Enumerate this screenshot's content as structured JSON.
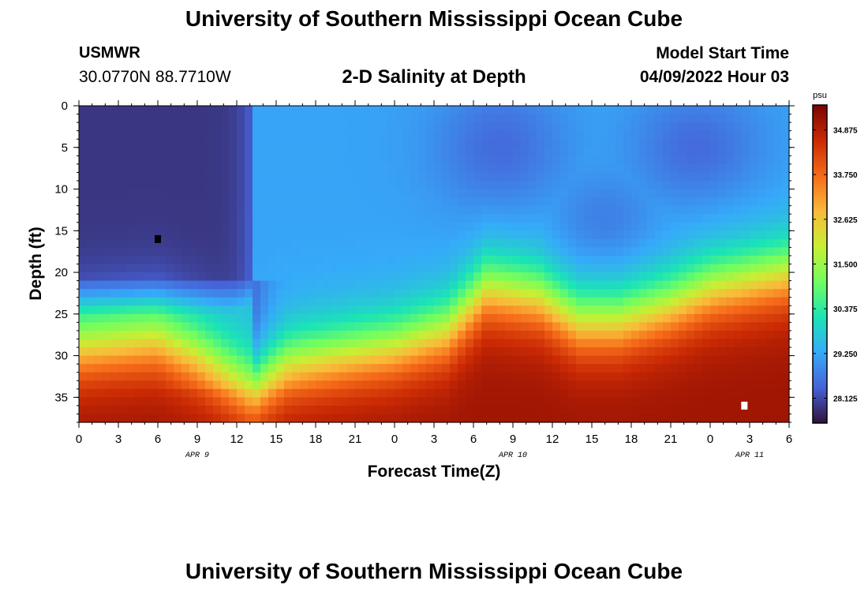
{
  "header": {
    "title": "University of Southern Mississippi Ocean Cube",
    "station": "USMWR",
    "coordinates": "30.0770N  88.7710W",
    "subtitle": "2-D Salinity at Depth",
    "model_start_label": "Model Start Time",
    "model_start_value": "04/09/2022 Hour 03"
  },
  "footer": {
    "title": "University of Southern Mississippi Ocean Cube"
  },
  "chart_data": {
    "type": "heatmap",
    "title": "2-D Salinity at Depth",
    "xlabel": "Forecast Time(Z)",
    "ylabel": "Depth (ft)",
    "x_hours_from_start": [
      0,
      54
    ],
    "x_tick_labels": [
      "0",
      "3",
      "6",
      "9",
      "12",
      "15",
      "18",
      "21",
      "0",
      "3",
      "6",
      "9",
      "12",
      "15",
      "18",
      "21",
      "0",
      "3",
      "6"
    ],
    "date_labels": [
      {
        "hour": 9,
        "text": "APR 9"
      },
      {
        "hour": 33,
        "text": "APR 10"
      },
      {
        "hour": 51,
        "text": "APR 11"
      }
    ],
    "y_range": [
      0,
      38
    ],
    "y_ticks": [
      0,
      5,
      10,
      15,
      20,
      25,
      30,
      35
    ],
    "colorbar_unit": "psu",
    "colorbar_range": [
      27.5,
      35.5
    ],
    "colorbar_ticks": [
      28.125,
      29.25,
      30.375,
      31.5,
      32.625,
      33.75,
      34.875
    ],
    "colorbar_tick_labels": [
      "28.125",
      "29.250",
      "30.375",
      "31.500",
      "32.625",
      "33.750",
      "34.875"
    ],
    "markers": [
      {
        "hour": 6,
        "depth": 16,
        "color": "#000000"
      },
      {
        "hour": 50.6,
        "depth": 36,
        "color": "#ffffff"
      }
    ],
    "colormap": [
      "#30123b",
      "#4662d7",
      "#36aaf9",
      "#1ae4b6",
      "#72fe5e",
      "#c8ef34",
      "#faba39",
      "#f66b19",
      "#ca2a04",
      "#7a0403"
    ],
    "salinity_model": {
      "surface_fresh": 27.9,
      "mid_fresh": 28.2,
      "mixed_layer": 29.2,
      "eddy_low": 28.5,
      "deep_salty": 35.1,
      "halocline_depth_hours": [
        0,
        6,
        9,
        13,
        16,
        20,
        24,
        28,
        31,
        35,
        38,
        41,
        45,
        48,
        51,
        54
      ],
      "halocline_depth_ft": [
        29,
        28,
        30,
        34,
        31,
        30,
        29,
        27,
        22,
        23,
        26,
        26,
        24,
        22,
        21,
        20
      ]
    }
  }
}
